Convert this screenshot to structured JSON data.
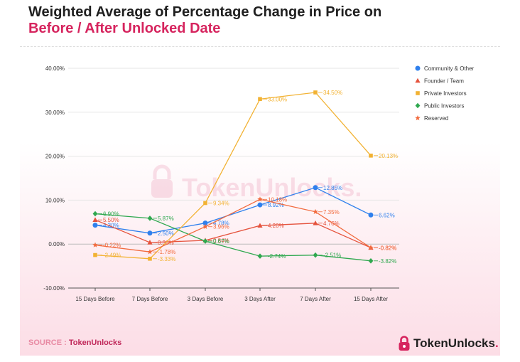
{
  "header": {
    "title_line1": "Weighted Average of Percentage Change in Price on",
    "title_line2": "Before / After Unlocked Date"
  },
  "watermark": {
    "text": "TokenUnlocks."
  },
  "footer": {
    "source_label": "SOURCE : ",
    "source_name": "TokenUnlocks",
    "logo_text": "TokenUnlocks",
    "logo_dot": "."
  },
  "colors": {
    "accent": "#d6245e",
    "community": "#2f80ed",
    "founder": "#e5533d",
    "private": "#f2b233",
    "public": "#2fa84f",
    "reserved": "#f26a3d"
  },
  "chart_data": {
    "type": "line",
    "title": "Weighted Average of Percentage Change in Price on Before / After Unlocked Date",
    "categories": [
      "15 Days Before",
      "7 Days Before",
      "3 Days Before",
      "3 Days After",
      "7 Days After",
      "15 Days After"
    ],
    "y_ticks": [
      -10,
      0,
      10,
      20,
      30,
      40
    ],
    "y_tick_labels": [
      "-10.00%",
      "0.00%",
      "10.00%",
      "20.00%",
      "30.00%",
      "40.00%"
    ],
    "ylim": [
      -10,
      40
    ],
    "grid": true,
    "legend_position": "top-right",
    "series": [
      {
        "name": "Community & Other",
        "color": "#2f80ed",
        "marker": "circle",
        "values": [
          4.3,
          2.5,
          4.78,
          8.92,
          12.85,
          6.62
        ],
        "labels": [
          "4.30%",
          "2.50%",
          "4.78%",
          "8.92%",
          "12.85%",
          "6.62%"
        ]
      },
      {
        "name": "Founder / Team",
        "color": "#e5533d",
        "marker": "triangle",
        "values": [
          5.5,
          0.36,
          0.84,
          4.2,
          4.76,
          -0.82
        ],
        "labels": [
          "5.50%",
          "0.36%",
          "0.84%",
          "4.20%",
          "4.76%",
          "-0.82%"
        ]
      },
      {
        "name": "Private Investors",
        "color": "#f2b233",
        "marker": "square",
        "values": [
          -2.49,
          -3.33,
          9.34,
          33.0,
          34.5,
          20.13
        ],
        "labels": [
          "-2.49%",
          "-3.33%",
          "9.34%",
          "33.00%",
          "34.50%",
          "20.13%"
        ]
      },
      {
        "name": "Public Investors",
        "color": "#2fa84f",
        "marker": "diamond",
        "values": [
          6.9,
          5.87,
          0.67,
          -2.74,
          -2.51,
          -3.82
        ],
        "labels": [
          "6.90%",
          "5.87%",
          "0.67%",
          "-2.74%",
          "-2.51%",
          "-3.82%"
        ]
      },
      {
        "name": "Reserved",
        "color": "#f26a3d",
        "marker": "star",
        "values": [
          -0.22,
          -1.78,
          3.96,
          10.18,
          7.35,
          -0.82
        ],
        "labels": [
          "-0.22%",
          "-1.78%",
          "3.96%",
          "10.18%",
          "7.35%",
          "-0.82%"
        ]
      }
    ]
  }
}
